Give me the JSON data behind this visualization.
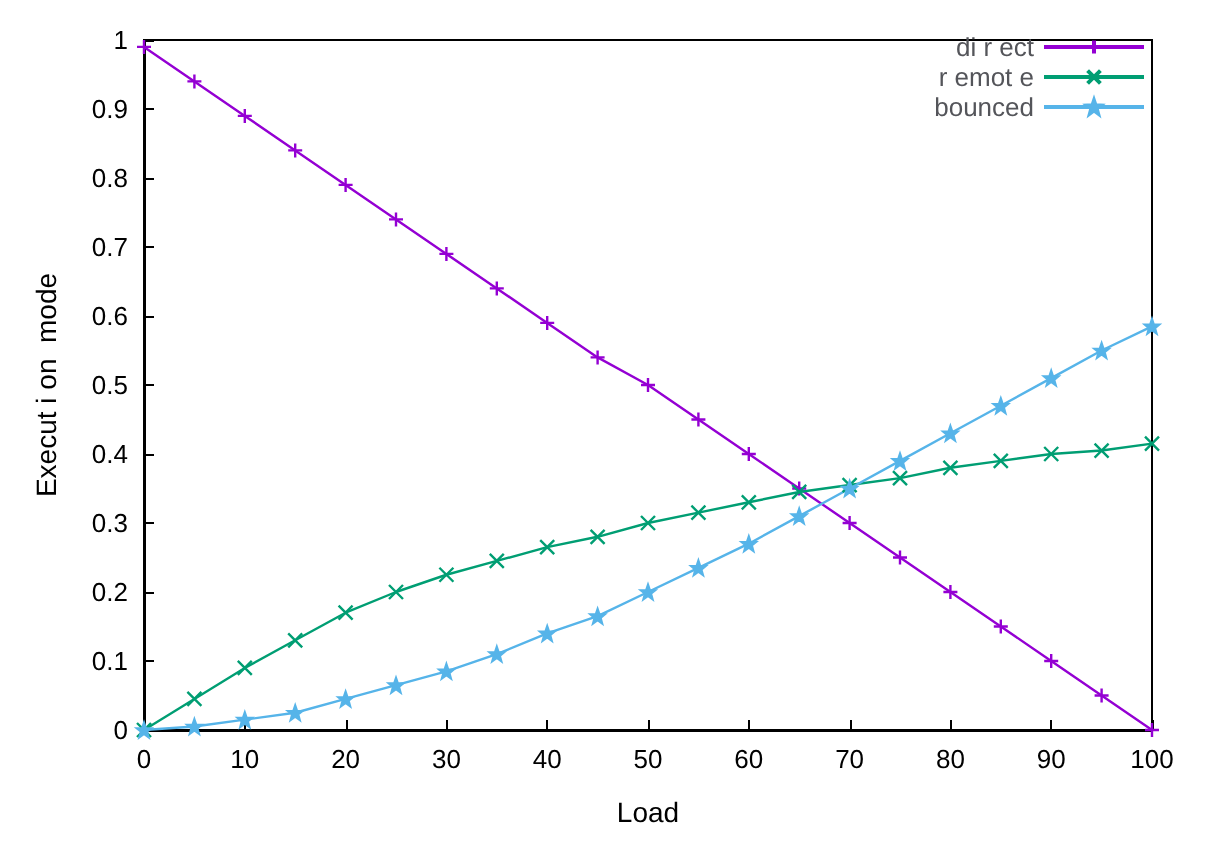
{
  "chart_data": {
    "type": "line",
    "xlabel": "Load",
    "ylabel": "Execut i on  mode",
    "xlim": [
      0,
      100
    ],
    "ylim": [
      0,
      1
    ],
    "xticks": [
      0,
      10,
      20,
      30,
      40,
      50,
      60,
      70,
      80,
      90,
      100
    ],
    "yticks": [
      0,
      0.1,
      0.2,
      0.3,
      0.4,
      0.5,
      0.6,
      0.7,
      0.8,
      0.9,
      1
    ],
    "grid": false,
    "legend": "top right",
    "x": [
      0,
      5,
      10,
      15,
      20,
      25,
      30,
      35,
      40,
      45,
      50,
      55,
      60,
      65,
      70,
      75,
      80,
      85,
      90,
      95,
      100
    ],
    "series": [
      {
        "name": "di r ect",
        "color": "#9400d3",
        "marker": "cross",
        "values": [
          0.99,
          0.94,
          0.89,
          0.84,
          0.79,
          0.74,
          0.69,
          0.64,
          0.59,
          0.54,
          0.5,
          0.45,
          0.4,
          0.35,
          0.3,
          0.25,
          0.2,
          0.15,
          0.1,
          0.05,
          0
        ]
      },
      {
        "name": "r emot e",
        "color": "#009e73",
        "marker": "x",
        "values": [
          0,
          0.045,
          0.09,
          0.13,
          0.17,
          0.2,
          0.225,
          0.245,
          0.265,
          0.28,
          0.3,
          0.315,
          0.33,
          0.345,
          0.355,
          0.365,
          0.38,
          0.39,
          0.4,
          0.405,
          0.415
        ]
      },
      {
        "name": "bounced",
        "color": "#56b4e9",
        "marker": "star",
        "values": [
          0,
          0.005,
          0.015,
          0.025,
          0.045,
          0.065,
          0.085,
          0.11,
          0.14,
          0.165,
          0.2,
          0.235,
          0.27,
          0.31,
          0.35,
          0.39,
          0.43,
          0.47,
          0.51,
          0.55,
          0.585
        ]
      }
    ]
  }
}
